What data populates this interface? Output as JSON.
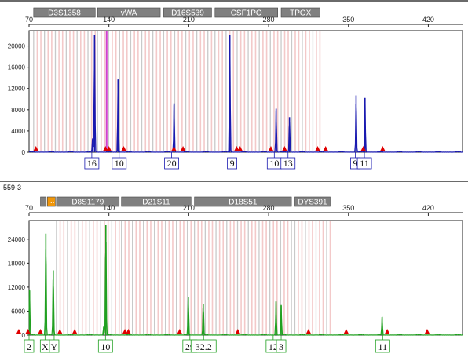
{
  "panel_top": {
    "sample_label": "",
    "markers": [
      {
        "name": "D3S1358",
        "from": 74,
        "to": 128
      },
      {
        "name": "vWA",
        "from": 130,
        "to": 185
      },
      {
        "name": "D16S539",
        "from": 188,
        "to": 230
      },
      {
        "name": "CSF1PO",
        "from": 233,
        "to": 288
      },
      {
        "name": "TPOX",
        "from": 291,
        "to": 325
      }
    ],
    "bin_color": "#f3c9c9",
    "trace_color": "#1a1ab0"
  },
  "panel_bottom": {
    "sample_label": "559-3",
    "markers": [
      {
        "name": "",
        "from": 80,
        "to": 85,
        "color": "#808080"
      },
      {
        "name": "...",
        "from": 86,
        "to": 93,
        "color": "#f0960a"
      },
      {
        "name": "D8S1179",
        "from": 94,
        "to": 149
      },
      {
        "name": "D21S11",
        "from": 151,
        "to": 212
      },
      {
        "name": "D18S51",
        "from": 215,
        "to": 300
      },
      {
        "name": "DYS391",
        "from": 303,
        "to": 334
      }
    ],
    "bin_color": "#f3c9c9",
    "trace_color": "#20a020"
  },
  "chart_data": [
    {
      "type": "line",
      "xlim": [
        70,
        450
      ],
      "ylim": [
        0,
        22000
      ],
      "xticks": [
        70,
        140,
        210,
        280,
        350,
        420
      ],
      "yticks": [
        0,
        4000,
        8000,
        12000,
        16000,
        20000
      ],
      "series": [
        {
          "values": [
            {
              "x": 125.7,
              "y": 2600
            },
            {
              "x": 127.4,
              "y": 22000
            },
            {
              "x": 148.0,
              "y": 13700
            },
            {
              "x": 197.1,
              "y": 9200
            },
            {
              "x": 246.0,
              "y": 22000
            },
            {
              "x": 286.6,
              "y": 8200
            },
            {
              "x": 298.3,
              "y": 6600
            },
            {
              "x": 356.7,
              "y": 10700
            },
            {
              "x": 364.5,
              "y": 10200
            }
          ]
        }
      ],
      "pink_peak_x": [
        138
      ],
      "allele_labels": [
        {
          "x": 125,
          "label": "16"
        },
        {
          "x": 149,
          "label": "10"
        },
        {
          "x": 195,
          "label": "20"
        },
        {
          "x": 248,
          "label": "9"
        },
        {
          "x": 285,
          "label": "10"
        },
        {
          "x": 297,
          "label": "13"
        },
        {
          "x": 356,
          "label": "9"
        },
        {
          "x": 364,
          "label": "11"
        }
      ],
      "size_standard_x": [
        76,
        137,
        140,
        153,
        197,
        205,
        252,
        255,
        282,
        294,
        323,
        330,
        363,
        380
      ]
    },
    {
      "type": "line",
      "xlim": [
        70,
        450
      ],
      "ylim": [
        0,
        27500
      ],
      "xticks": [
        70,
        140,
        210,
        280,
        350,
        420
      ],
      "yticks": [
        0,
        6000,
        12000,
        18000,
        24000
      ],
      "series": [
        {
          "values": [
            {
              "x": 70.4,
              "y": 11400
            },
            {
              "x": 84.7,
              "y": 25400
            },
            {
              "x": 91.2,
              "y": 16200
            },
            {
              "x": 135.4,
              "y": 2100
            },
            {
              "x": 137.3,
              "y": 27500
            },
            {
              "x": 209.6,
              "y": 9500
            },
            {
              "x": 222.7,
              "y": 7800
            },
            {
              "x": 286.5,
              "y": 8400
            },
            {
              "x": 291.0,
              "y": 7400
            },
            {
              "x": 379.5,
              "y": 4500
            }
          ]
        }
      ],
      "allele_labels": [
        {
          "x": 70,
          "label": "2"
        },
        {
          "x": 84,
          "label": "X"
        },
        {
          "x": 92,
          "label": "Y"
        },
        {
          "x": 137,
          "label": "10"
        },
        {
          "x": 211,
          "label": "29"
        },
        {
          "x": 223,
          "label": "32.2"
        },
        {
          "x": 284,
          "label": "12"
        },
        {
          "x": 291,
          "label": "3"
        },
        {
          "x": 380,
          "label": "11"
        }
      ],
      "size_standard_x": [
        61,
        69,
        80,
        97,
        110,
        154,
        157,
        202,
        253,
        315,
        348,
        384,
        419
      ]
    }
  ]
}
